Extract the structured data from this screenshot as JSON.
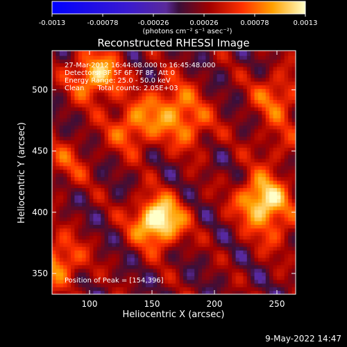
{
  "chart_data": {
    "type": "heatmap",
    "title": "Reconstructed RHESSI Image",
    "xlabel": "Heliocentric X (arcsec)",
    "ylabel": "Heliocentric Y (arcsec)",
    "xlim": [
      70,
      265
    ],
    "ylim": [
      333,
      532
    ],
    "x_ticks": [
      100,
      150,
      200,
      250
    ],
    "y_ticks": [
      350,
      400,
      450,
      500
    ],
    "colorbar": {
      "ticks": [
        "-0.0013",
        "-0.00078",
        "-0.00026",
        "0.00026",
        "0.00078",
        "0.0013"
      ],
      "min": -0.0013,
      "max": 0.0013,
      "units": "(photons cm⁻² s⁻¹ asec⁻²)"
    },
    "annotations": [
      "27-Mar-2012 16:44:08.000 to 16:45:48.000",
      "Detectors: 3F 5F 6F 7F 8F, Att 0",
      "Energy Range: 25.0 - 50.0 keV",
      "Clean      Total counts: 2.05E+03"
    ],
    "peak_label": "Position of Peak = [154,396]",
    "peak": [
      154,
      396
    ],
    "sources": [
      {
        "x": 155,
        "y": 393,
        "value": 0.0013
      },
      {
        "x": 238,
        "y": 410,
        "value": 0.0011
      },
      {
        "x": 105,
        "y": 512,
        "value": 0.00095
      },
      {
        "x": 135,
        "y": 470,
        "value": 0.0007
      },
      {
        "x": 165,
        "y": 490,
        "value": 0.0006
      },
      {
        "x": 250,
        "y": 495,
        "value": 0.0006
      },
      {
        "x": 180,
        "y": 470,
        "value": 0.00055
      },
      {
        "x": 75,
        "y": 360,
        "value": 0.00075
      },
      {
        "x": 80,
        "y": 440,
        "value": 0.0004
      },
      {
        "x": 250,
        "y": 385,
        "value": 0.00035
      },
      {
        "x": 250,
        "y": 455,
        "value": 0.0003
      }
    ]
  },
  "footer": {
    "date": "9-May-2022 14:47"
  }
}
